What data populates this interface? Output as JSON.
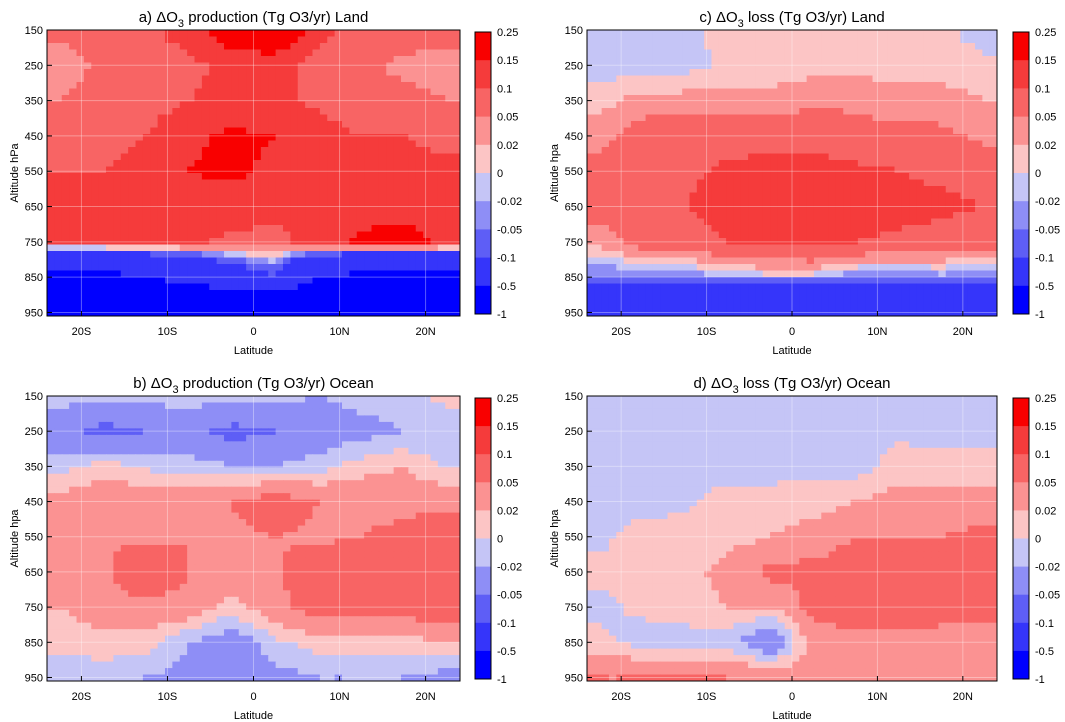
{
  "figure": {
    "palette": [
      "#0000ff",
      "#3535fa",
      "#5e5ef6",
      "#8e8ef6",
      "#c5c5f6",
      "#fcc5c5",
      "#fb9292",
      "#f86464",
      "#f53b3b",
      "#f90000"
    ],
    "colorbar_labels": [
      "0.25",
      "0.15",
      "0.1",
      "0.05",
      "0.02",
      "0",
      "-0.02",
      "-0.05",
      "-0.1",
      "-0.5",
      "-1"
    ],
    "lat_ticks": [
      -20,
      -10,
      0,
      10,
      20
    ],
    "lat_tick_labels": [
      "20S",
      "10S",
      "0",
      "10N",
      "20N"
    ],
    "lat_range": [
      -24,
      24
    ],
    "alt_ticks": [
      150,
      250,
      350,
      450,
      550,
      650,
      750,
      850,
      950
    ],
    "alt_range": [
      150,
      960
    ]
  },
  "chart_data": [
    {
      "type": "heatmap",
      "panel_prefix": "a)",
      "title_mid": "production (Tg O3/yr)",
      "title_region": "Land",
      "xlabel": "Latitude",
      "ylabel": "Altitude hPa",
      "x": [
        -22.5,
        -17.5,
        -12.5,
        -7.5,
        -2.5,
        2.5,
        7.5,
        12.5,
        17.5,
        22.5
      ],
      "y": [
        150,
        250,
        350,
        450,
        550,
        650,
        750,
        850,
        950
      ],
      "z": [
        [
          0.06,
          0.08,
          0.09,
          0.12,
          0.2,
          0.22,
          0.12,
          0.08,
          0.07,
          0.06
        ],
        [
          0.03,
          0.06,
          0.08,
          0.09,
          0.11,
          0.12,
          0.08,
          0.06,
          0.04,
          0.04
        ],
        [
          0.05,
          0.07,
          0.08,
          0.1,
          0.11,
          0.11,
          0.09,
          0.07,
          0.06,
          0.05
        ],
        [
          0.09,
          0.08,
          0.1,
          0.14,
          0.16,
          0.15,
          0.12,
          0.1,
          0.1,
          0.09
        ],
        [
          0.1,
          0.1,
          0.12,
          0.15,
          0.16,
          0.14,
          0.12,
          0.12,
          0.11,
          0.11
        ],
        [
          0.12,
          0.12,
          0.13,
          0.13,
          0.13,
          0.12,
          0.13,
          0.13,
          0.13,
          0.12
        ],
        [
          0.11,
          0.12,
          0.11,
          0.11,
          0.09,
          0.08,
          0.13,
          0.16,
          0.17,
          0.14
        ],
        [
          -0.6,
          -0.6,
          -0.5,
          -0.4,
          -0.2,
          -0.1,
          -0.5,
          -0.6,
          -0.6,
          -0.6
        ],
        [
          -1,
          -1,
          -1,
          -1,
          -1,
          -1,
          -1,
          -1,
          -1,
          -1
        ]
      ]
    },
    {
      "type": "heatmap",
      "panel_prefix": "b)",
      "title_mid": "production (Tg O3/yr)",
      "title_region": "Ocean",
      "xlabel": "Latitude",
      "ylabel": "Altitude hpa",
      "x": [
        -22.5,
        -17.5,
        -12.5,
        -7.5,
        -2.5,
        2.5,
        7.5,
        12.5,
        17.5,
        22.5
      ],
      "y": [
        150,
        250,
        350,
        450,
        550,
        650,
        750,
        850,
        950
      ],
      "z": [
        [
          -0.01,
          -0.015,
          -0.01,
          -0.01,
          -0.01,
          -0.01,
          -0.02,
          -0.01,
          -0.01,
          0.01
        ],
        [
          -0.04,
          -0.06,
          -0.05,
          -0.04,
          -0.06,
          -0.05,
          -0.04,
          -0.03,
          -0.02,
          -0.02
        ],
        [
          -0.01,
          0.01,
          -0.005,
          -0.01,
          -0.02,
          -0.02,
          -0.01,
          0.01,
          0.02,
          -0.005
        ],
        [
          0.03,
          0.04,
          0.04,
          0.04,
          0.05,
          0.07,
          0.05,
          0.04,
          0.04,
          0.04
        ],
        [
          0.045,
          0.045,
          0.045,
          0.05,
          0.045,
          0.05,
          0.045,
          0.05,
          0.06,
          0.08
        ],
        [
          0.045,
          0.045,
          0.08,
          0.05,
          0.045,
          0.045,
          0.07,
          0.07,
          0.075,
          0.08
        ],
        [
          0.02,
          0.04,
          0.04,
          0.04,
          0.01,
          0.04,
          0.07,
          0.07,
          0.07,
          0.07
        ],
        [
          0.005,
          0.01,
          0.01,
          -0.02,
          -0.04,
          -0.005,
          0.01,
          0.01,
          0.01,
          0.02
        ],
        [
          -0.01,
          -0.01,
          -0.02,
          -0.03,
          -0.05,
          -0.03,
          -0.02,
          -0.02,
          -0.02,
          -0.03
        ]
      ]
    },
    {
      "type": "heatmap",
      "panel_prefix": "c)",
      "title_mid": "loss (Tg O3/yr)",
      "title_region": "Land",
      "xlabel": "Latitude",
      "ylabel": "Altitude hpa",
      "x": [
        -22.5,
        -17.5,
        -12.5,
        -7.5,
        -2.5,
        2.5,
        7.5,
        12.5,
        17.5,
        22.5
      ],
      "y": [
        150,
        250,
        350,
        450,
        550,
        650,
        750,
        850,
        950
      ],
      "z": [
        [
          -0.01,
          -0.01,
          -0.005,
          0.01,
          0.01,
          0.01,
          0.01,
          0.005,
          0.005,
          -0.01
        ],
        [
          -0.01,
          -0.01,
          -0.01,
          0.005,
          0.005,
          0.01,
          0.01,
          0.01,
          0.01,
          0.005
        ],
        [
          0.01,
          0.03,
          0.03,
          0.03,
          0.03,
          0.04,
          0.04,
          0.03,
          0.03,
          0.02
        ],
        [
          0.04,
          0.07,
          0.08,
          0.08,
          0.08,
          0.08,
          0.07,
          0.06,
          0.06,
          0.04
        ],
        [
          0.06,
          0.09,
          0.09,
          0.11,
          0.12,
          0.12,
          0.11,
          0.1,
          0.09,
          0.08
        ],
        [
          0.07,
          0.09,
          0.1,
          0.12,
          0.12,
          0.12,
          0.12,
          0.12,
          0.11,
          0.1
        ],
        [
          0.03,
          0.07,
          0.08,
          0.1,
          0.11,
          0.12,
          0.1,
          0.09,
          0.08,
          0.07
        ],
        [
          -0.05,
          -0.04,
          -0.04,
          -0.02,
          -0.01,
          -0.01,
          -0.04,
          -0.04,
          -0.03,
          -0.04
        ],
        [
          -0.5,
          -0.5,
          -0.5,
          -0.5,
          -0.5,
          -0.5,
          -0.5,
          -0.5,
          -0.5,
          -0.5
        ]
      ]
    },
    {
      "type": "heatmap",
      "panel_prefix": "d)",
      "title_mid": "loss (Tg O3/yr)",
      "title_region": "Ocean",
      "xlabel": "Latitude",
      "ylabel": "Altitude hpa",
      "x": [
        -22.5,
        -17.5,
        -12.5,
        -7.5,
        -2.5,
        2.5,
        7.5,
        12.5,
        17.5,
        22.5
      ],
      "y": [
        150,
        250,
        350,
        450,
        550,
        650,
        750,
        850,
        950
      ],
      "z": [
        [
          -0.01,
          -0.01,
          -0.01,
          -0.01,
          -0.01,
          -0.01,
          -0.01,
          -0.01,
          -0.01,
          -0.01
        ],
        [
          -0.01,
          -0.01,
          -0.01,
          -0.01,
          -0.01,
          -0.01,
          -0.01,
          -0.005,
          -0.01,
          -0.01
        ],
        [
          -0.01,
          -0.01,
          -0.01,
          -0.01,
          -0.01,
          -0.005,
          -0.01,
          0.01,
          0.01,
          0.01
        ],
        [
          -0.01,
          -0.01,
          -0.005,
          0.01,
          0.01,
          0.01,
          0.02,
          0.03,
          0.03,
          0.03
        ],
        [
          -0.005,
          0.01,
          0.01,
          0.01,
          0.02,
          0.03,
          0.05,
          0.05,
          0.05,
          0.06
        ],
        [
          0.005,
          0.01,
          0.01,
          0.03,
          0.06,
          0.06,
          0.07,
          0.07,
          0.07,
          0.07
        ],
        [
          -0.005,
          0.005,
          0.01,
          0.02,
          0.02,
          0.06,
          0.07,
          0.07,
          0.06,
          0.06
        ],
        [
          0.005,
          -0.01,
          -0.01,
          -0.01,
          -0.05,
          0.03,
          0.04,
          0.04,
          0.04,
          0.04
        ],
        [
          0.05,
          0.05,
          0.05,
          0.05,
          0.04,
          0.03,
          0.03,
          0.03,
          0.05,
          0.03
        ]
      ]
    }
  ]
}
